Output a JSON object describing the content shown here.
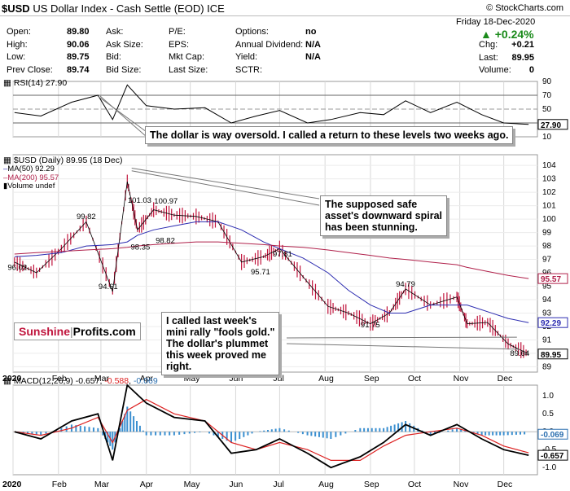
{
  "header": {
    "symbol": "$USD",
    "name": "US Dollar Index - Cash Settle (EOD)",
    "exchange": "ICE",
    "copyright": "© StockCharts.com",
    "date": "Friday  18-Dec-2020",
    "change_pct": "+0.24%",
    "quote": [
      {
        "label": "Open:",
        "value": "89.80"
      },
      {
        "label": "High:",
        "value": "90.06"
      },
      {
        "label": "Low:",
        "value": "89.75"
      },
      {
        "label": "Prev Close:",
        "value": "89.74"
      }
    ],
    "book": [
      {
        "label": "Ask:"
      },
      {
        "label": "Ask Size:"
      },
      {
        "label": "Bid:"
      },
      {
        "label": "Bid Size:"
      }
    ],
    "fundamentals": [
      {
        "label": "P/E:"
      },
      {
        "label": "EPS:"
      },
      {
        "label": "Mkt Cap:"
      },
      {
        "label": "Last Size:"
      }
    ],
    "options": [
      {
        "label": "Options:",
        "value": "no"
      },
      {
        "label": "Annual Dividend:",
        "value": "N/A"
      },
      {
        "label": "Yield:",
        "value": "N/A"
      },
      {
        "label": "SCTR:",
        "value": ""
      }
    ],
    "right_stats": [
      {
        "label": "Chg:",
        "value": "+0.21"
      },
      {
        "label": "Last:",
        "value": "89.95"
      },
      {
        "label": "Volume:",
        "value": "0"
      }
    ]
  },
  "chart_data": [
    {
      "type": "line",
      "legend": "RSI(14) 27.90",
      "x": [
        "2020-01-02",
        "2020-01-20",
        "2020-02-10",
        "2020-02-28",
        "2020-03-09",
        "2020-03-19",
        "2020-04-01",
        "2020-04-20",
        "2020-05-11",
        "2020-05-29",
        "2020-06-15",
        "2020-07-01",
        "2020-07-20",
        "2020-08-05",
        "2020-08-25",
        "2020-09-10",
        "2020-09-25",
        "2020-10-12",
        "2020-10-30",
        "2020-11-16",
        "2020-12-01",
        "2020-12-18"
      ],
      "series": [
        {
          "values": [
            45,
            40,
            60,
            70,
            35,
            85,
            55,
            50,
            52,
            30,
            40,
            48,
            30,
            35,
            45,
            42,
            62,
            45,
            60,
            42,
            30,
            27.9
          ]
        }
      ],
      "ylim": [
        10,
        90
      ],
      "yticks": [
        10,
        30,
        50,
        70,
        90
      ],
      "reference_lines": [
        30,
        50,
        70
      ],
      "last_label": "27.90",
      "color": "#000000"
    },
    {
      "type": "line",
      "title": "$USD (Daily) 89.95 (18 Dec)",
      "legend": [
        {
          "name": "MA(50) 92.29",
          "color": "#2b2bb0"
        },
        {
          "name": "MA(200) 95.57",
          "color": "#b0204a"
        },
        {
          "name": "Volume undef",
          "color": "#666666"
        }
      ],
      "x": [
        "2020-01-02",
        "2020-01-17",
        "2020-02-03",
        "2020-02-20",
        "2020-03-09",
        "2020-03-19",
        "2020-03-26",
        "2020-04-06",
        "2020-04-20",
        "2020-05-05",
        "2020-05-20",
        "2020-06-05",
        "2020-06-20",
        "2020-07-01",
        "2020-07-17",
        "2020-08-03",
        "2020-08-17",
        "2020-09-01",
        "2020-09-14",
        "2020-09-25",
        "2020-10-12",
        "2020-10-30",
        "2020-11-06",
        "2020-11-20",
        "2020-12-04",
        "2020-12-18"
      ],
      "series": [
        {
          "values": [
            96.8,
            96.0,
            97.8,
            99.8,
            94.6,
            102.8,
            99.2,
            100.7,
            100.3,
            100.2,
            99.8,
            96.8,
            97.2,
            97.8,
            95.7,
            93.5,
            93.0,
            92.2,
            93.0,
            94.8,
            93.6,
            94.2,
            92.2,
            92.3,
            90.7,
            89.95
          ]
        },
        {
          "values": [
            97.2,
            97.3,
            97.5,
            98.0,
            98.1,
            98.3,
            98.8,
            99.2,
            99.5,
            99.8,
            99.8,
            99.2,
            98.3,
            97.8,
            97.1,
            96.0,
            94.7,
            93.6,
            93.0,
            93.0,
            93.6,
            93.6,
            93.6,
            93.1,
            92.6,
            92.29
          ],
          "color": "#2b2bb0"
        },
        {
          "values": [
            97.4,
            97.5,
            97.6,
            97.7,
            97.8,
            97.9,
            98.0,
            98.1,
            98.2,
            98.3,
            98.3,
            98.2,
            98.1,
            98.0,
            97.9,
            97.7,
            97.5,
            97.3,
            97.1,
            97.0,
            96.8,
            96.6,
            96.4,
            96.1,
            95.8,
            95.57
          ],
          "color": "#b0204a"
        }
      ],
      "ylim": [
        88.6,
        104.8
      ],
      "yticks": [
        89,
        90,
        91,
        92,
        93,
        94,
        95,
        96,
        97,
        98,
        99,
        100,
        101,
        102,
        103,
        104
      ],
      "annotations": [
        {
          "text": "101.03",
          "x": "2020-03-26",
          "y": 101.03
        },
        {
          "text": "100.97",
          "x": "2020-04-13",
          "y": 100.97
        },
        {
          "text": "99.82",
          "x": "2020-02-20",
          "y": 99.82
        },
        {
          "text": "98.35",
          "x": "2020-03-28",
          "y": 98.35
        },
        {
          "text": "98.82",
          "x": "2020-04-14",
          "y": 98.82
        },
        {
          "text": "97.81",
          "x": "2020-07-03",
          "y": 97.81
        },
        {
          "text": "96.02",
          "x": "2020-01-04",
          "y": 96.02
        },
        {
          "text": "95.71",
          "x": "2020-06-18",
          "y": 95.71
        },
        {
          "text": "94.61",
          "x": "2020-03-06",
          "y": 94.61
        },
        {
          "text": "94.79",
          "x": "2020-09-25",
          "y": 94.79
        },
        {
          "text": "91.75",
          "x": "2020-09-01",
          "y": 91.75
        },
        {
          "text": "89.64",
          "x": "2020-12-12",
          "y": 89.64
        }
      ],
      "last_labels": [
        {
          "text": "95.57",
          "y": 95.57,
          "color": "#b0204a"
        },
        {
          "text": "92.29",
          "y": 92.29,
          "color": "#2b2bb0"
        },
        {
          "text": "89.95",
          "y": 89.95,
          "color": "#000000"
        }
      ]
    },
    {
      "type": "line",
      "legend_prefix": "MACD(12,26,9) -0.657, ",
      "legend_signal": "-0.588",
      "legend_sep": ", ",
      "legend_hist": "-0.069",
      "x": [
        "2020-01-02",
        "2020-01-20",
        "2020-02-10",
        "2020-02-28",
        "2020-03-09",
        "2020-03-19",
        "2020-04-01",
        "2020-04-20",
        "2020-05-11",
        "2020-05-29",
        "2020-06-15",
        "2020-07-01",
        "2020-07-20",
        "2020-08-05",
        "2020-08-25",
        "2020-09-10",
        "2020-09-25",
        "2020-10-12",
        "2020-10-30",
        "2020-11-16",
        "2020-12-01",
        "2020-12-18"
      ],
      "series": [
        {
          "name": "MACD",
          "values": [
            0.0,
            -0.2,
            0.3,
            0.5,
            -0.8,
            1.3,
            0.8,
            0.4,
            0.3,
            -0.6,
            -0.5,
            -0.2,
            -0.6,
            -1.0,
            -0.7,
            -0.3,
            0.2,
            -0.1,
            0.2,
            -0.2,
            -0.5,
            -0.657
          ],
          "color": "#000000"
        },
        {
          "name": "Signal",
          "values": [
            0.0,
            -0.1,
            0.1,
            0.4,
            -0.3,
            0.6,
            0.9,
            0.5,
            0.3,
            -0.3,
            -0.5,
            -0.3,
            -0.5,
            -0.8,
            -0.8,
            -0.4,
            -0.1,
            0.0,
            0.1,
            -0.1,
            -0.4,
            -0.588
          ],
          "color": "#dd2222"
        }
      ],
      "histogram": [
        0.0,
        -0.1,
        0.2,
        0.1,
        -0.5,
        0.7,
        -0.1,
        -0.1,
        0.0,
        -0.3,
        0.0,
        0.1,
        -0.1,
        -0.2,
        0.1,
        0.1,
        0.3,
        -0.1,
        0.1,
        -0.1,
        -0.1,
        -0.069
      ],
      "ylim": [
        -1.2,
        1.3
      ],
      "yticks": [
        -1.0,
        -0.5,
        0.0,
        0.5,
        1.0
      ],
      "last_labels": [
        {
          "text": "-0.069",
          "y": -0.069,
          "color": "#2b6fb0"
        },
        {
          "text": "-0.657",
          "y": -0.657,
          "color": "#000000"
        }
      ]
    }
  ],
  "months": [
    "2020",
    "Feb",
    "Mar",
    "Apr",
    "May",
    "Jun",
    "Jul",
    "Aug",
    "Sep",
    "Oct",
    "Nov",
    "Dec"
  ],
  "callouts": {
    "rsi": "The dollar is way oversold. I called a return to these levels two weeks ago.",
    "safe_haven": "The supposed safe\nasset's downward spiral\nhas been stunning.",
    "fools_gold": "I called last week's\nmini rally \"fools gold.\"\nThe dollar's plummet\nthis week proved me\nright."
  },
  "logo": {
    "part1": "Sunshine",
    "part2": "Profits.com"
  },
  "colors": {
    "up": "#1a8a1a",
    "price_bar": "#c0143c",
    "ma50": "#2b2bb0",
    "ma200": "#b0204a",
    "macd_hist": "#3a8fd0",
    "signal": "#dd2222"
  }
}
